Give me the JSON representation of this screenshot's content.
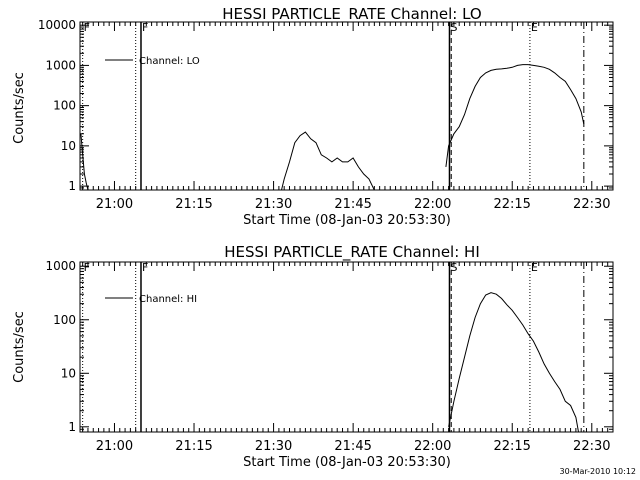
{
  "chart_data": [
    {
      "type": "line",
      "title": "HESSI PARTICLE_RATE Channel: LO",
      "xlabel": "Start Time (08-Jan-03 20:53:30)",
      "ylabel": "Counts/sec",
      "yscale": "log",
      "grid": false,
      "legend_position": "top-left",
      "xlim": [
        "20:53:30",
        "22:34:00"
      ],
      "ylim": [
        0.8,
        12000
      ],
      "x_ticks": [
        "21:00",
        "21:15",
        "21:30",
        "21:45",
        "22:00",
        "22:15",
        "22:30"
      ],
      "y_ticks": [
        "1",
        "10",
        "100",
        "1000",
        "10000"
      ],
      "markers": [
        {
          "label": "F",
          "x": "20:54:00",
          "style": "dotted"
        },
        {
          "label": "",
          "x": "21:04:00",
          "style": "dotted"
        },
        {
          "label": "F",
          "x": "21:05:00",
          "style": "solid"
        },
        {
          "label": "S",
          "x": "22:03:10",
          "style": "solid"
        },
        {
          "label": "",
          "x": "22:03:30",
          "style": "dashed"
        },
        {
          "label": "E",
          "x": "22:18:20",
          "style": "dotted"
        },
        {
          "label": "",
          "x": "22:28:30",
          "style": "dashdot"
        }
      ],
      "series": [
        {
          "name": "Channel: LO",
          "segments": [
            {
              "x": [
                "20:53:40",
                "20:54:00",
                "20:54:20",
                "20:54:40",
                "20:55:00"
              ],
              "y": [
                20,
                6,
                2,
                1.2,
                0.8
              ]
            },
            {
              "x": [
                "21:31:30",
                "21:32:00",
                "21:33:00",
                "21:34:00",
                "21:35:00",
                "21:36:00",
                "21:37:00",
                "21:38:00",
                "21:39:00",
                "21:40:00",
                "21:41:00",
                "21:42:00",
                "21:43:00",
                "21:44:00",
                "21:45:00",
                "21:46:00",
                "21:47:00",
                "21:48:00",
                "21:49:00"
              ],
              "y": [
                0.8,
                1.5,
                4,
                12,
                18,
                22,
                15,
                12,
                6,
                5,
                4,
                5,
                4,
                4,
                5,
                3,
                2,
                1.5,
                0.8
              ]
            },
            {
              "x": [
                "22:02:30",
                "22:03:00",
                "22:04:00",
                "22:05:00",
                "22:06:00",
                "22:07:00",
                "22:08:00",
                "22:09:00",
                "22:10:00",
                "22:11:00",
                "22:12:00",
                "22:13:00",
                "22:14:00",
                "22:15:00",
                "22:16:00",
                "22:17:00",
                "22:18:00",
                "22:19:00",
                "22:20:00",
                "22:21:00",
                "22:22:00",
                "22:23:00",
                "22:24:00",
                "22:25:00",
                "22:26:00",
                "22:27:00",
                "22:28:00",
                "22:28:30"
              ],
              "y": [
                3,
                10,
                20,
                30,
                60,
                150,
                300,
                500,
                650,
                750,
                800,
                820,
                850,
                900,
                1000,
                1050,
                1050,
                1000,
                950,
                900,
                800,
                650,
                500,
                400,
                250,
                150,
                70,
                35
              ]
            }
          ]
        }
      ]
    },
    {
      "type": "line",
      "title": "HESSI PARTICLE_RATE Channel: HI",
      "xlabel": "Start Time (08-Jan-03 20:53:30)",
      "ylabel": "Counts/sec",
      "yscale": "log",
      "grid": false,
      "legend_position": "top-left",
      "xlim": [
        "20:53:30",
        "22:34:00"
      ],
      "ylim": [
        0.8,
        1200
      ],
      "x_ticks": [
        "21:00",
        "21:15",
        "21:30",
        "21:45",
        "22:00",
        "22:15",
        "22:30"
      ],
      "y_ticks": [
        "1",
        "10",
        "100",
        "1000"
      ],
      "markers": [
        {
          "label": "F",
          "x": "20:54:00",
          "style": "dotted"
        },
        {
          "label": "",
          "x": "21:04:00",
          "style": "dotted"
        },
        {
          "label": "F",
          "x": "21:05:00",
          "style": "solid"
        },
        {
          "label": "S",
          "x": "22:03:10",
          "style": "solid"
        },
        {
          "label": "",
          "x": "22:03:30",
          "style": "dashed"
        },
        {
          "label": "E",
          "x": "22:18:20",
          "style": "dotted"
        },
        {
          "label": "",
          "x": "22:28:30",
          "style": "dashdot"
        }
      ],
      "series": [
        {
          "name": "Channel: HI",
          "segments": [
            {
              "x": [
                "22:03:00",
                "22:04:00",
                "22:05:00",
                "22:06:00",
                "22:07:00",
                "22:08:00",
                "22:09:00",
                "22:10:00",
                "22:11:00",
                "22:12:00",
                "22:13:00",
                "22:14:00",
                "22:15:00",
                "22:16:00",
                "22:17:00",
                "22:18:00",
                "22:19:00",
                "22:20:00",
                "22:21:00",
                "22:22:00",
                "22:23:00",
                "22:24:00",
                "22:25:00",
                "22:26:00",
                "22:27:00",
                "22:27:30"
              ],
              "y": [
                1,
                3,
                8,
                20,
                50,
                110,
                200,
                290,
                320,
                300,
                250,
                190,
                150,
                110,
                80,
                55,
                40,
                25,
                15,
                10,
                7,
                5,
                3,
                2.5,
                1.5,
                0.8
              ]
            }
          ]
        }
      ]
    }
  ],
  "footer": {
    "timestamp": "30-Mar-2010 10:12"
  }
}
